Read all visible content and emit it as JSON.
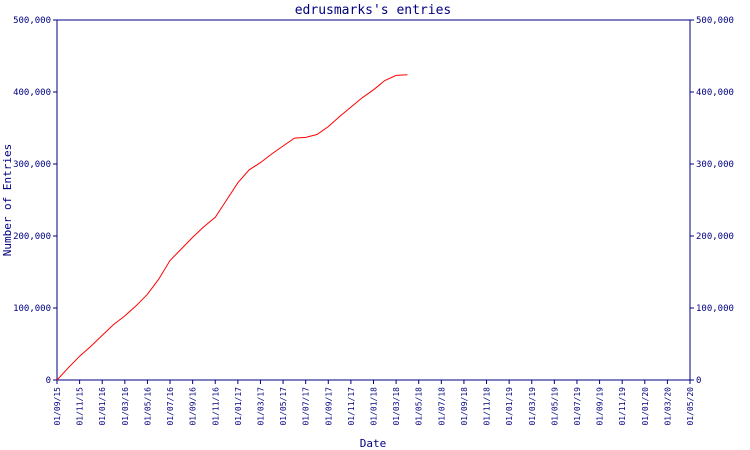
{
  "chart_data": {
    "type": "line",
    "title": "edrusmarks's entries",
    "xlabel": "Date",
    "ylabel": "Number of Entries",
    "ylim": [
      0,
      500000
    ],
    "y_ticks": [
      0,
      100000,
      200000,
      300000,
      400000,
      500000
    ],
    "y_tick_labels": [
      "0",
      "100,000",
      "200,000",
      "300,000",
      "400,000",
      "500,000"
    ],
    "y_axis_right": true,
    "grid": false,
    "colors": {
      "axes": "#000080",
      "line": "#ff0000",
      "background": "#ffffff"
    },
    "x_tick_labels": [
      "01/09/15",
      "01/11/15",
      "01/01/16",
      "01/03/16",
      "01/05/16",
      "01/07/16",
      "01/09/16",
      "01/11/16",
      "01/01/17",
      "01/03/17",
      "01/05/17",
      "01/07/17",
      "01/09/17",
      "01/11/17",
      "01/01/18",
      "01/03/18",
      "01/05/18",
      "01/07/18",
      "01/09/18",
      "01/11/18",
      "01/01/19",
      "01/03/19",
      "01/05/19",
      "01/07/19",
      "01/09/19",
      "01/11/19",
      "01/01/20",
      "01/03/20",
      "01/05/20"
    ],
    "series": [
      {
        "values": [
          0,
          17000,
          33000,
          47000,
          62000,
          77000,
          89000,
          103000,
          119000,
          140000,
          166000,
          182000,
          198000,
          213000,
          226000,
          250000,
          274000,
          292000,
          302000,
          314000,
          325000,
          336000,
          337000,
          341000,
          352000,
          366000,
          379000,
          392000,
          403000,
          416000,
          423000,
          424000
        ]
      }
    ],
    "x": [
      "01/09/15",
      "01/10/15",
      "01/11/15",
      "01/12/15",
      "01/01/16",
      "01/02/16",
      "01/03/16",
      "01/04/16",
      "01/05/16",
      "01/06/16",
      "01/07/16",
      "01/08/16",
      "01/09/16",
      "01/10/16",
      "01/11/16",
      "01/12/16",
      "01/01/17",
      "01/02/17",
      "01/03/17",
      "01/04/17",
      "01/05/17",
      "01/06/17",
      "01/07/17",
      "01/08/17",
      "01/09/17",
      "01/10/17",
      "01/11/17",
      "01/12/17",
      "01/01/18",
      "01/02/18",
      "01/03/18",
      "01/04/18"
    ]
  }
}
